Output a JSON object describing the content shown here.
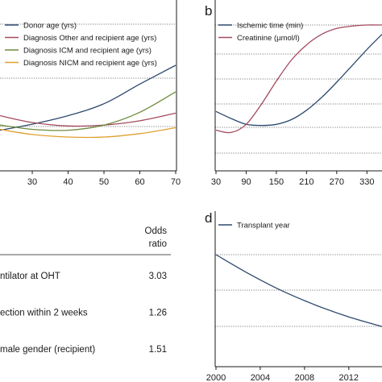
{
  "chart_data": [
    {
      "panel": "",
      "type": "line",
      "xticks": [
        "30",
        "40",
        "50",
        "60",
        "70"
      ],
      "xlim": [
        21,
        70
      ],
      "ylim": [
        0,
        1
      ],
      "legend": "top-left",
      "series": [
        {
          "name": "Donor age (yrs)",
          "color": "#2c4a6e",
          "x": [
            21,
            30,
            40,
            50,
            60,
            70
          ],
          "y": [
            0.24,
            0.31,
            0.41,
            0.55,
            0.78,
            1.0
          ]
        },
        {
          "name": "Diagnosis Other and recipient age (yrs)",
          "color": "#a34a5e",
          "x": [
            21,
            30,
            40,
            50,
            60,
            70
          ],
          "y": [
            0.41,
            0.33,
            0.29,
            0.3,
            0.35,
            0.44
          ]
        },
        {
          "name": "Diagnosis ICM and recipient age (yrs)",
          "color": "#6e8b3d",
          "x": [
            21,
            30,
            40,
            50,
            60,
            70
          ],
          "y": [
            0.3,
            0.25,
            0.24,
            0.3,
            0.45,
            0.69
          ]
        },
        {
          "name": "Diagnosis NICM and recipient age (yrs)",
          "color": "#e0a030",
          "x": [
            21,
            30,
            40,
            50,
            60,
            70
          ],
          "y": [
            0.25,
            0.19,
            0.16,
            0.16,
            0.2,
            0.27
          ]
        }
      ]
    },
    {
      "panel": "b",
      "type": "line",
      "xticks": [
        "30",
        "90",
        "150",
        "210",
        "270",
        "330"
      ],
      "xlim": [
        30,
        360
      ],
      "ylim": [
        0,
        1
      ],
      "legend": "top-left",
      "series": [
        {
          "name": "Ischemic time (min)",
          "color": "#2c4a6e",
          "x": [
            30,
            60,
            90,
            120,
            150,
            180,
            210,
            240,
            270,
            300,
            330,
            360
          ],
          "y": [
            0.26,
            0.2,
            0.15,
            0.14,
            0.15,
            0.19,
            0.27,
            0.38,
            0.51,
            0.65,
            0.79,
            0.92
          ]
        },
        {
          "name": "Creatinine (µmol/l)",
          "color": "#a34a5e",
          "x": [
            30,
            60,
            90,
            120,
            150,
            180,
            210,
            240,
            270,
            300,
            330,
            360
          ],
          "y": [
            0.1,
            0.08,
            0.15,
            0.32,
            0.52,
            0.7,
            0.83,
            0.92,
            0.97,
            0.99,
            1.0,
            1.0
          ]
        }
      ]
    },
    {
      "panel": "d",
      "type": "line",
      "xticks": [
        "2000",
        "2004",
        "2008",
        "2012"
      ],
      "xlim": [
        2000,
        2015
      ],
      "ylim": [
        0,
        1
      ],
      "legend": "top-left",
      "series": [
        {
          "name": "Transplant year",
          "color": "#2c4a6e",
          "x": [
            2000,
            2003,
            2006,
            2009,
            2012,
            2015
          ],
          "y": [
            1.0,
            0.74,
            0.51,
            0.32,
            0.16,
            0.03
          ]
        }
      ]
    },
    {
      "panel": "",
      "type": "table",
      "header": "Odds ratio",
      "header_lines": [
        "Odds",
        "ratio"
      ],
      "rows": [
        {
          "label": "ntilator at OHT",
          "value": "3.03"
        },
        {
          "label": "ection within 2 weeks",
          "value": "1.26"
        },
        {
          "label": "male gender (recipient)",
          "value": "1.51"
        }
      ]
    }
  ]
}
